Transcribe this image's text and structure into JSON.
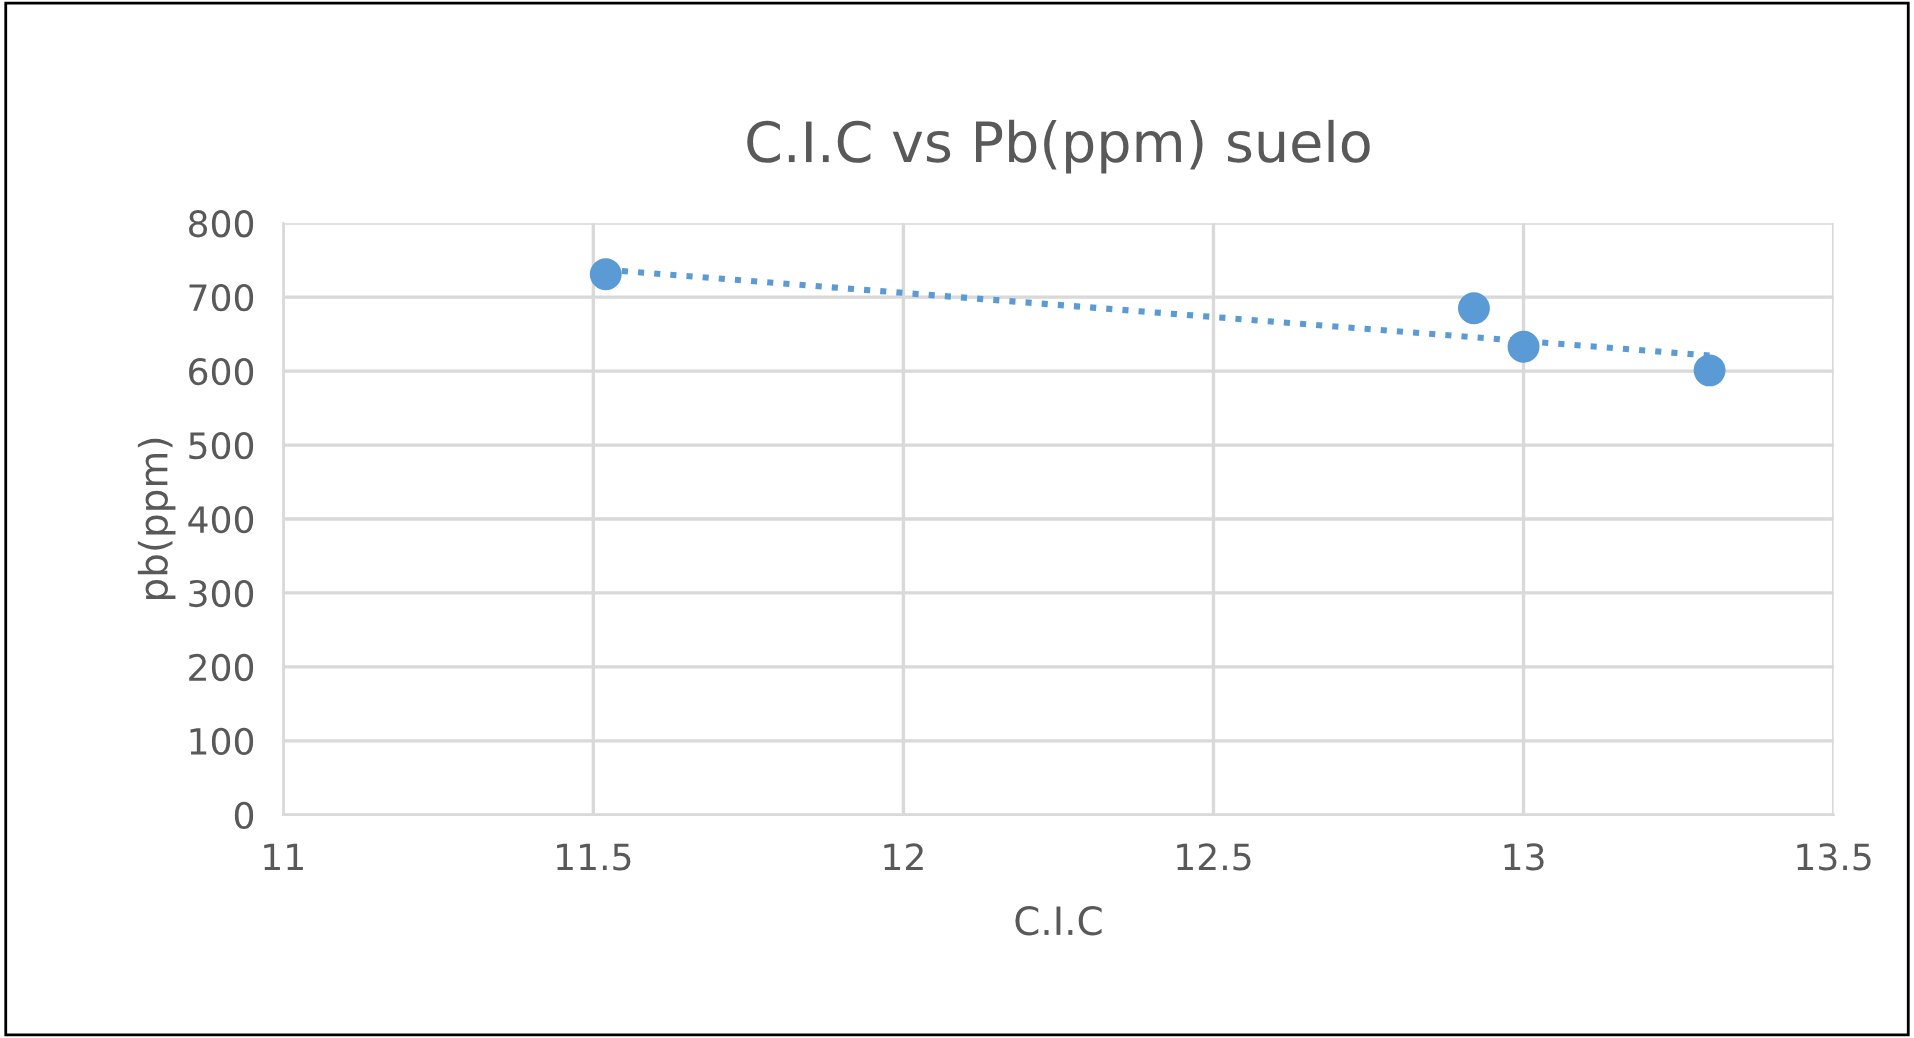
{
  "chart_data": {
    "type": "scatter",
    "title": "C.I.C vs Pb(ppm) suelo",
    "xlabel": "C.I.C",
    "ylabel": "pb(ppm)",
    "series": [
      {
        "color": "#5b9bd5",
        "x": [
          11.52,
          12.92,
          13.0,
          13.3
        ],
        "values": [
          731,
          685,
          633,
          601
        ],
        "marker": "circle"
      },
      {
        "type": "line",
        "color": "#5b9bd5",
        "x": [
          11.52,
          13.3
        ],
        "values": [
          737,
          621
        ],
        "line_style": "dotted",
        "marker": "none"
      }
    ],
    "xlim": [
      11,
      13.5
    ],
    "xticks": [
      11,
      11.5,
      12,
      12.5,
      13,
      13.5
    ],
    "ylim": [
      0,
      800
    ],
    "yticks": [
      0,
      100,
      200,
      300,
      400,
      500,
      600,
      700,
      800
    ],
    "grid": true,
    "legend": false
  }
}
